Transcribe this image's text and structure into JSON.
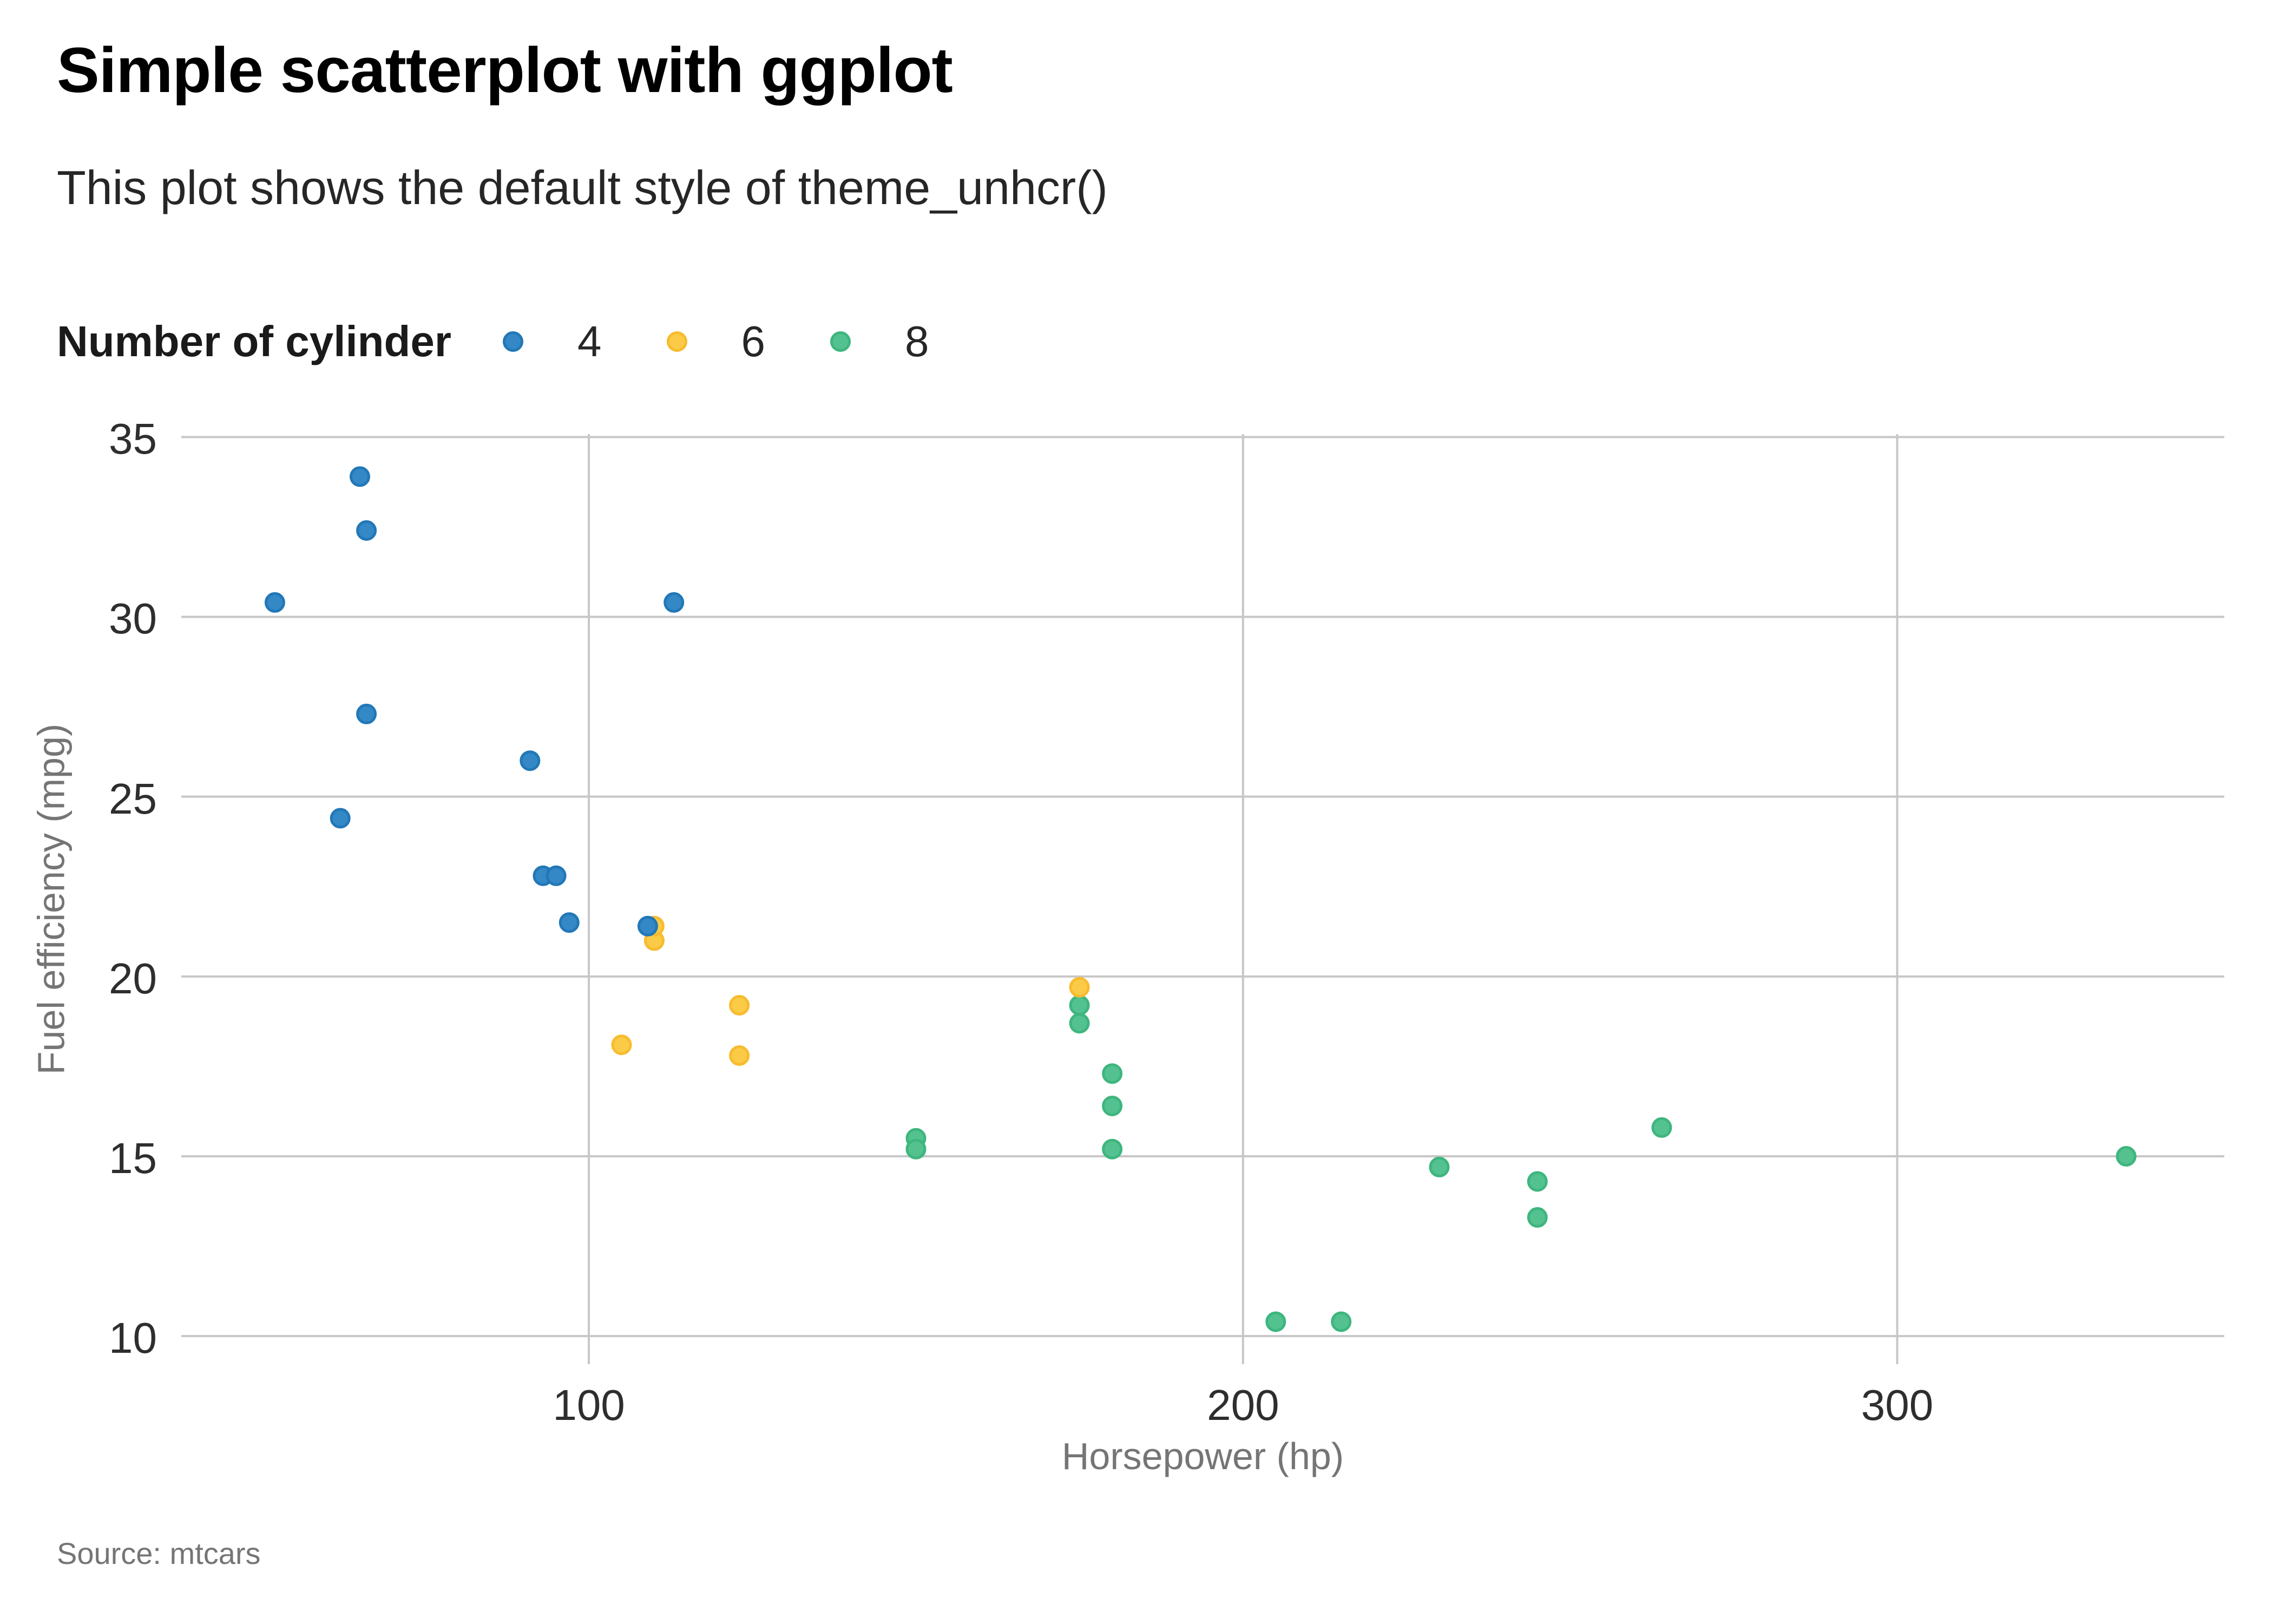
{
  "header": {
    "title": "Simple scatterplot with ggplot",
    "subtitle": "This plot shows the default style of theme_unhcr()"
  },
  "legend": {
    "title": "Number of cylinder",
    "items": [
      {
        "label": "4",
        "color": "#3488C5",
        "ring": "#2278B7"
      },
      {
        "label": "6",
        "color": "#FBCA47",
        "ring": "#F7BC2F"
      },
      {
        "label": "8",
        "color": "#54C290",
        "ring": "#3EB67E"
      }
    ]
  },
  "axes": {
    "x_title": "Horsepower (hp)",
    "y_title": "Fuel efficiency (mpg)"
  },
  "source": "Source: mtcars",
  "style": {
    "gridline_color": "#C7C7C7",
    "background": "#FFFFFF"
  },
  "chart_data": {
    "type": "scatter",
    "title": "Simple scatterplot with ggplot",
    "subtitle": "This plot shows the default style of theme_unhcr()",
    "xlabel": "Horsepower (hp)",
    "ylabel": "Fuel efficiency (mpg)",
    "legend_title": "Number of cylinder",
    "legend_position": "top",
    "grid": true,
    "x_ticks": [
      100,
      200,
      300
    ],
    "y_ticks": [
      10,
      15,
      20,
      25,
      30,
      35
    ],
    "xlim": [
      37.7,
      350
    ],
    "ylim": [
      9.22,
      35.08
    ],
    "series": [
      {
        "name": "4",
        "color": "#3488C5",
        "ring": "#2278B7",
        "points": [
          [
            93,
            22.8
          ],
          [
            62,
            24.4
          ],
          [
            95,
            22.8
          ],
          [
            66,
            32.4
          ],
          [
            52,
            30.4
          ],
          [
            65,
            33.9
          ],
          [
            97,
            21.5
          ],
          [
            66,
            27.3
          ],
          [
            91,
            26.0
          ],
          [
            113,
            30.4
          ],
          [
            109,
            21.4
          ]
        ]
      },
      {
        "name": "6",
        "color": "#FBCA47",
        "ring": "#F7BC2F",
        "points": [
          [
            110,
            21.0
          ],
          [
            110,
            21.0
          ],
          [
            110,
            21.4
          ],
          [
            105,
            18.1
          ],
          [
            123,
            19.2
          ],
          [
            123,
            17.8
          ],
          [
            175,
            19.7
          ]
        ]
      },
      {
        "name": "8",
        "color": "#54C290",
        "ring": "#3EB67E",
        "points": [
          [
            175,
            18.7
          ],
          [
            245,
            14.3
          ],
          [
            180,
            16.4
          ],
          [
            180,
            17.3
          ],
          [
            180,
            15.2
          ],
          [
            205,
            10.4
          ],
          [
            215,
            10.4
          ],
          [
            230,
            14.7
          ],
          [
            150,
            15.5
          ],
          [
            150,
            15.2
          ],
          [
            245,
            13.3
          ],
          [
            175,
            19.2
          ],
          [
            264,
            15.8
          ],
          [
            335,
            15.0
          ]
        ]
      }
    ]
  }
}
